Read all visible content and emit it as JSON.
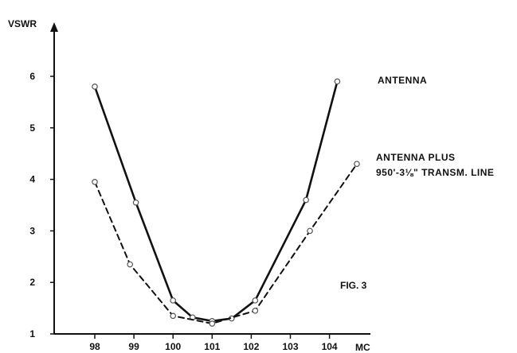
{
  "chart_data": {
    "type": "line",
    "ylabel": "VSWR",
    "xlabel": "MC",
    "xlim": [
      97.5,
      104.8
    ],
    "ylim": [
      1,
      6.6
    ],
    "x_ticks": [
      "98",
      "99",
      "100",
      "101",
      "102",
      "103",
      "104"
    ],
    "y_ticks": [
      "1",
      "2",
      "3",
      "4",
      "5",
      "6"
    ],
    "grid": false,
    "series": [
      {
        "name": "ANTENNA",
        "style": "solid",
        "color": "#111111",
        "points": [
          {
            "x": 98.0,
            "y": 5.8
          },
          {
            "x": 99.05,
            "y": 3.55
          },
          {
            "x": 100.0,
            "y": 1.65
          },
          {
            "x": 100.5,
            "y": 1.32
          },
          {
            "x": 101.0,
            "y": 1.25
          },
          {
            "x": 101.5,
            "y": 1.3
          },
          {
            "x": 102.1,
            "y": 1.65
          },
          {
            "x": 103.4,
            "y": 3.6
          },
          {
            "x": 104.2,
            "y": 5.9
          }
        ]
      },
      {
        "name": "ANTENNA PLUS 950'-3⅛\" TRANSM. LINE",
        "style": "dashed",
        "color": "#111111",
        "points": [
          {
            "x": 98.0,
            "y": 3.95
          },
          {
            "x": 98.9,
            "y": 2.35
          },
          {
            "x": 100.0,
            "y": 1.35
          },
          {
            "x": 101.0,
            "y": 1.2
          },
          {
            "x": 102.1,
            "y": 1.45
          },
          {
            "x": 103.5,
            "y": 3.0
          },
          {
            "x": 104.7,
            "y": 4.3
          }
        ]
      }
    ],
    "annotations": {
      "series1_label": "ANTENNA",
      "series2_label_line1": "ANTENNA PLUS",
      "series2_label_line2": "950'-3⅛\" TRANSM. LINE",
      "figure_label": "FIG. 3"
    }
  }
}
